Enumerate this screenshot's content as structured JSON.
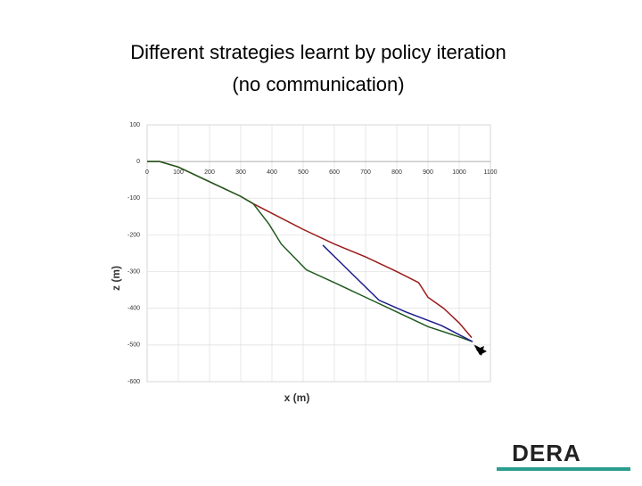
{
  "chart_data": {
    "type": "line",
    "title": [
      "Different strategies learnt by policy iteration",
      "(no communication)"
    ],
    "x_label": "x (m)",
    "y_label": "z (m)",
    "xlim": [
      0,
      1100
    ],
    "xticks": [
      0,
      100,
      200,
      300,
      400,
      500,
      600,
      700,
      800,
      900,
      1000,
      1100
    ],
    "ylim": [
      -600,
      100
    ],
    "yticks": [
      100,
      0,
      -100,
      -200,
      -300,
      -400,
      -500,
      -600
    ],
    "grid": true,
    "series": [
      {
        "name": "red",
        "color": "#9b1b1b",
        "x": [
          0,
          40,
          100,
          200,
          300,
          340,
          500,
          600,
          700,
          800,
          870,
          900,
          950,
          1000,
          1040
        ],
        "values": [
          0,
          0,
          -15,
          -55,
          -95,
          -115,
          -185,
          -225,
          -260,
          -300,
          -330,
          -370,
          -400,
          -440,
          -480
        ]
      },
      {
        "name": "green",
        "color": "#1f5a1f",
        "x": [
          0,
          40,
          100,
          200,
          300,
          340,
          390,
          430,
          470,
          510,
          600,
          700,
          800,
          900,
          1000,
          1040
        ],
        "values": [
          0,
          0,
          -15,
          -55,
          -95,
          -115,
          -170,
          -225,
          -260,
          -295,
          -330,
          -370,
          -410,
          -450,
          -478,
          -490
        ]
      },
      {
        "name": "blue",
        "color": "#1c1c8c",
        "x": [
          563,
          743,
          829,
          943,
          1043
        ],
        "values": [
          -228,
          -378,
          -410,
          -447,
          -491
        ]
      }
    ]
  },
  "logo": "DERA"
}
